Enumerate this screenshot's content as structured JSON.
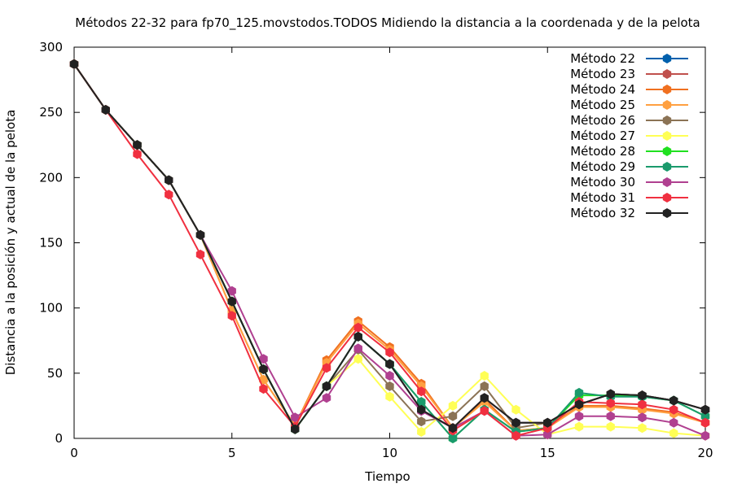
{
  "chart_data": {
    "type": "line",
    "title": "Métodos 22-32 para fp70_125.movstodos.TODOS Midiendo la distancia a la coordenada y de la pelota",
    "xlabel": "Tiempo",
    "ylabel": "Distancia a la posición y actual de la pelota",
    "xlim": [
      0,
      20
    ],
    "ylim": [
      0,
      300
    ],
    "xticks": [
      0,
      5,
      10,
      15,
      20
    ],
    "yticks": [
      0,
      50,
      100,
      150,
      200,
      250,
      300
    ],
    "grid": false,
    "legend_position": "top-right",
    "x": [
      0,
      1,
      2,
      3,
      4,
      5,
      6,
      7,
      8,
      9,
      10,
      11,
      12,
      13,
      14,
      15,
      16,
      17,
      18,
      19,
      20
    ],
    "series": [
      {
        "name": "Método 22",
        "color": "#0060ad",
        "values": [
          287,
          252,
          225,
          198,
          156,
          105,
          53,
          7,
          40,
          78,
          57,
          22,
          8,
          31,
          12,
          12,
          26,
          34,
          33,
          29,
          22
        ]
      },
      {
        "name": "Método 23",
        "color": "#c0504d",
        "values": [
          287,
          252,
          225,
          198,
          156,
          105,
          53,
          7,
          40,
          78,
          57,
          22,
          8,
          31,
          12,
          12,
          26,
          34,
          33,
          29,
          22
        ]
      },
      {
        "name": "Método 24",
        "color": "#f07020",
        "values": [
          287,
          252,
          225,
          198,
          156,
          98,
          45,
          10,
          60,
          90,
          70,
          42,
          8,
          30,
          6,
          8,
          25,
          25,
          23,
          20,
          12
        ]
      },
      {
        "name": "Método 25",
        "color": "#ffa040",
        "values": [
          287,
          252,
          225,
          198,
          156,
          98,
          45,
          10,
          58,
          88,
          68,
          40,
          8,
          28,
          6,
          8,
          24,
          24,
          22,
          19,
          12
        ]
      },
      {
        "name": "Método 26",
        "color": "#8b7355",
        "values": [
          287,
          252,
          225,
          198,
          156,
          105,
          53,
          7,
          40,
          68,
          40,
          13,
          17,
          40,
          8,
          12,
          26,
          34,
          33,
          29,
          22
        ]
      },
      {
        "name": "Método 27",
        "color": "#ffff55",
        "values": [
          287,
          252,
          225,
          198,
          156,
          105,
          53,
          7,
          40,
          61,
          32,
          5,
          25,
          48,
          22,
          3,
          9,
          9,
          8,
          4,
          2
        ]
      },
      {
        "name": "Método 28",
        "color": "#20e020",
        "values": [
          287,
          252,
          225,
          198,
          156,
          105,
          53,
          7,
          40,
          78,
          57,
          28,
          0,
          22,
          5,
          8,
          33,
          33,
          32,
          29,
          17
        ]
      },
      {
        "name": "Método 29",
        "color": "#1a9a6c",
        "values": [
          287,
          252,
          225,
          198,
          156,
          105,
          53,
          7,
          40,
          78,
          57,
          28,
          0,
          22,
          5,
          8,
          35,
          32,
          32,
          29,
          17
        ]
      },
      {
        "name": "Método 30",
        "color": "#b04090",
        "values": [
          287,
          252,
          225,
          198,
          156,
          113,
          61,
          16,
          31,
          69,
          48,
          21,
          8,
          21,
          2,
          3,
          17,
          17,
          16,
          12,
          2
        ]
      },
      {
        "name": "Método 31",
        "color": "#f03040",
        "values": [
          287,
          252,
          218,
          187,
          141,
          94,
          38,
          9,
          54,
          85,
          66,
          36,
          6,
          21,
          2,
          8,
          28,
          27,
          26,
          22,
          12
        ]
      },
      {
        "name": "Método 32",
        "color": "#222222",
        "values": [
          287,
          252,
          225,
          198,
          156,
          105,
          53,
          7,
          40,
          78,
          57,
          22,
          8,
          31,
          12,
          12,
          26,
          34,
          33,
          29,
          22
        ]
      }
    ]
  }
}
